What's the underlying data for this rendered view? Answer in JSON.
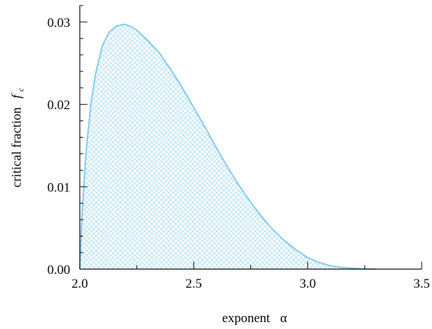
{
  "chart_data": {
    "type": "area",
    "title": "",
    "xlabel": "exponent",
    "xlabel_symbol": "α",
    "ylabel": "critical fraction",
    "ylabel_symbol": "f",
    "ylabel_subscript": "c",
    "xlim": [
      2.0,
      3.5
    ],
    "ylim": [
      0.0,
      0.032
    ],
    "x_ticks": [
      {
        "value": 2.0,
        "label": "2.0"
      },
      {
        "value": 2.5,
        "label": "2.5"
      },
      {
        "value": 3.0,
        "label": "3.0"
      },
      {
        "value": 3.5,
        "label": "3.5"
      }
    ],
    "y_ticks": [
      {
        "value": 0.0,
        "label": "0.00"
      },
      {
        "value": 0.01,
        "label": "0.01"
      },
      {
        "value": 0.02,
        "label": "0.02"
      },
      {
        "value": 0.03,
        "label": "0.03"
      }
    ],
    "grid": false,
    "fill": "cross-hatched",
    "series": [
      {
        "color": "#80c8ee",
        "x": [
          2.0,
          2.005,
          2.01,
          2.02,
          2.03,
          2.05,
          2.07,
          2.1,
          2.13,
          2.16,
          2.19,
          2.2,
          2.22,
          2.25,
          2.3,
          2.35,
          2.4,
          2.45,
          2.5,
          2.55,
          2.6,
          2.65,
          2.7,
          2.75,
          2.8,
          2.85,
          2.9,
          2.95,
          3.0,
          3.05,
          3.1,
          3.15,
          3.2,
          3.25,
          3.3
        ],
        "y": [
          0.0,
          0.0035,
          0.0065,
          0.0112,
          0.015,
          0.0203,
          0.0238,
          0.0272,
          0.0288,
          0.0295,
          0.0297,
          0.0297,
          0.0295,
          0.029,
          0.0277,
          0.0262,
          0.0242,
          0.022,
          0.0196,
          0.0172,
          0.0147,
          0.0123,
          0.0101,
          0.0081,
          0.0063,
          0.0047,
          0.0034,
          0.0023,
          0.0014,
          0.0008,
          0.0004,
          0.0002,
          0.0001,
          3e-05,
          0.0
        ]
      }
    ]
  }
}
